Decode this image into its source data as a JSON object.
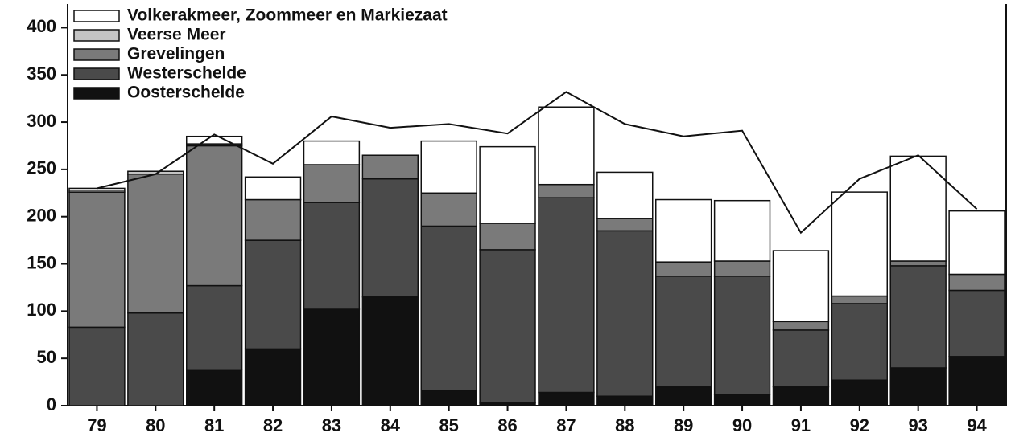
{
  "chart_data": {
    "type": "stacked_bar",
    "categories": [
      "79",
      "80",
      "81",
      "82",
      "83",
      "84",
      "85",
      "86",
      "87",
      "88",
      "89",
      "90",
      "91",
      "92",
      "93",
      "94"
    ],
    "series": [
      {
        "name": "Oosterschelde",
        "color": "#111111",
        "values": [
          0,
          0,
          38,
          60,
          102,
          115,
          16,
          3,
          14,
          10,
          20,
          12,
          20,
          27,
          40,
          52
        ]
      },
      {
        "name": "Westerschelde",
        "color": "#4a4a4a",
        "values": [
          83,
          98,
          89,
          115,
          113,
          125,
          174,
          162,
          206,
          175,
          117,
          125,
          60,
          81,
          108,
          70
        ]
      },
      {
        "name": "Grevelingen",
        "color": "#7a7a7a",
        "values": [
          143,
          147,
          148,
          43,
          40,
          25,
          35,
          28,
          14,
          13,
          15,
          16,
          9,
          8,
          5,
          17
        ]
      },
      {
        "name": "Veerse Meer",
        "color": "#c4c4c4",
        "values": [
          2,
          3,
          2,
          0,
          0,
          0,
          0,
          0,
          0,
          0,
          0,
          0,
          0,
          0,
          0,
          0
        ]
      },
      {
        "name": "Volkerakmeer, Zoommeer en Markiezaat",
        "color": "#ffffff",
        "values": [
          2,
          0,
          8,
          24,
          25,
          0,
          55,
          81,
          82,
          49,
          66,
          64,
          75,
          110,
          111,
          67
        ]
      }
    ],
    "line": {
      "color": "#111111",
      "values": [
        230,
        245,
        287,
        256,
        306,
        294,
        298,
        288,
        332,
        298,
        285,
        291,
        183,
        240,
        265,
        208
      ]
    },
    "ylim": [
      0,
      425
    ],
    "yticks": [
      0,
      50,
      100,
      150,
      200,
      250,
      300,
      350,
      400
    ]
  }
}
